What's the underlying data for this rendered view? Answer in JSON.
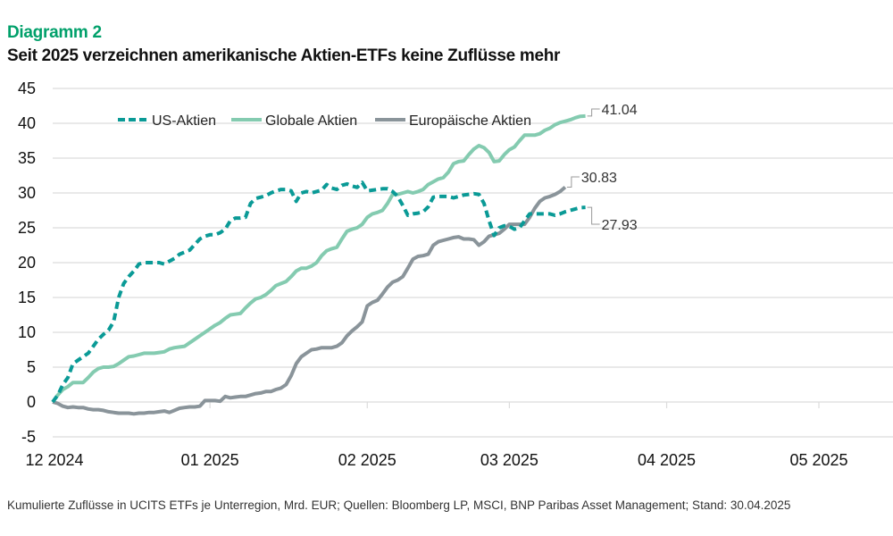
{
  "header": {
    "kicker": "Diagramm 2",
    "title": "Seit 2025 verzeichnen amerikanische Aktien-ETFs keine Zuflüsse mehr"
  },
  "footnote": "Kumulierte Zuflüsse in UCITS ETFs je Unterregion, Mrd. EUR; Quellen: Bloomberg LP, MSCI, BNP Paribas Asset Management; Stand: 30.04.2025",
  "chart_data": {
    "type": "line",
    "title": "Seit 2025 verzeichnen amerikanische Aktien-ETFs keine Zuflüsse mehr",
    "xlabel": "",
    "ylabel": "Mrd. EUR",
    "ylim": [
      -5,
      45
    ],
    "yticks": [
      45,
      40,
      35,
      30,
      25,
      20,
      15,
      10,
      5,
      0,
      -5
    ],
    "xlim_days": [
      0,
      151
    ],
    "xticks": [
      {
        "label": "12 2024",
        "day": 0
      },
      {
        "label": "01 2025",
        "day": 31
      },
      {
        "label": "02 2025",
        "day": 62
      },
      {
        "label": "03 2025",
        "day": 90
      },
      {
        "label": "04 2025",
        "day": 121
      },
      {
        "label": "05 2025",
        "day": 151
      }
    ],
    "grid": true,
    "legend_position": "top-left",
    "x_unit": "days since 2024-12-01",
    "series": [
      {
        "name": "US-Aktien",
        "color": "#0a9a96",
        "style": "dashed",
        "end_label": "27.93",
        "points": [
          [
            0,
            0
          ],
          [
            1,
            1
          ],
          [
            2,
            2.5
          ],
          [
            3,
            3.5
          ],
          [
            4,
            5.5
          ],
          [
            5,
            6
          ],
          [
            6,
            6.5
          ],
          [
            7,
            7
          ],
          [
            8,
            8
          ],
          [
            9,
            9
          ],
          [
            10,
            9.7
          ],
          [
            11,
            10.3
          ],
          [
            12,
            11.5
          ],
          [
            13,
            15
          ],
          [
            14,
            17
          ],
          [
            15,
            18
          ],
          [
            16,
            18.8
          ],
          [
            17,
            19.8
          ],
          [
            18,
            20
          ],
          [
            19,
            20
          ],
          [
            20,
            20
          ],
          [
            21,
            20
          ],
          [
            22,
            19.8
          ],
          [
            23,
            20.2
          ],
          [
            24,
            20.6
          ],
          [
            25,
            21.2
          ],
          [
            26,
            21.5
          ],
          [
            27,
            21.8
          ],
          [
            28,
            22.6
          ],
          [
            29,
            23.4
          ],
          [
            30,
            23.8
          ],
          [
            31,
            24
          ],
          [
            32,
            24
          ],
          [
            33,
            24.3
          ],
          [
            34,
            24.8
          ],
          [
            35,
            26
          ],
          [
            36,
            26.4
          ],
          [
            37,
            26.4
          ],
          [
            38,
            26.5
          ],
          [
            39,
            28.5
          ],
          [
            40,
            29.2
          ],
          [
            41,
            29.4
          ],
          [
            42,
            29.6
          ],
          [
            43,
            30
          ],
          [
            44,
            30.3
          ],
          [
            45,
            30.5
          ],
          [
            46,
            30.5
          ],
          [
            47,
            30.3
          ],
          [
            48,
            28.8
          ],
          [
            49,
            30
          ],
          [
            50,
            30.2
          ],
          [
            51,
            30
          ],
          [
            52,
            30.2
          ],
          [
            53,
            30.4
          ],
          [
            54,
            31.2
          ],
          [
            55,
            30.7
          ],
          [
            56,
            30.5
          ],
          [
            57,
            31.1
          ],
          [
            58,
            31.3
          ],
          [
            59,
            31
          ],
          [
            60,
            30.8
          ],
          [
            61,
            31.5
          ],
          [
            62,
            30.3
          ],
          [
            63,
            30.4
          ],
          [
            64,
            30.5
          ],
          [
            65,
            30.6
          ],
          [
            66,
            30.6
          ],
          [
            67,
            30.2
          ],
          [
            68,
            29.5
          ],
          [
            69,
            28.2
          ],
          [
            70,
            26.8
          ],
          [
            71,
            27
          ],
          [
            72,
            27.1
          ],
          [
            73,
            27.3
          ],
          [
            74,
            28
          ],
          [
            75,
            29.4
          ],
          [
            76,
            29.5
          ],
          [
            77,
            29.5
          ],
          [
            78,
            29.5
          ],
          [
            79,
            29.3
          ],
          [
            80,
            29.5
          ],
          [
            81,
            29.7
          ],
          [
            82,
            29.8
          ],
          [
            83,
            29.9
          ],
          [
            84,
            29.8
          ],
          [
            85,
            28.5
          ],
          [
            86,
            26
          ],
          [
            87,
            23.9
          ],
          [
            88,
            25
          ],
          [
            89,
            25.3
          ],
          [
            90,
            25.2
          ],
          [
            91,
            24.8
          ],
          [
            92,
            25
          ],
          [
            93,
            26
          ],
          [
            94,
            27
          ],
          [
            95,
            27
          ],
          [
            96,
            27
          ],
          [
            97,
            27
          ],
          [
            98,
            27
          ],
          [
            99,
            26.8
          ],
          [
            100,
            27
          ],
          [
            101,
            27.3
          ],
          [
            102,
            27.5
          ],
          [
            103,
            27.7
          ],
          [
            104,
            27.9
          ],
          [
            105,
            27.93
          ]
        ]
      },
      {
        "name": "Globale Aktien",
        "color": "#84cbb0",
        "style": "solid",
        "end_label": "41.04",
        "points": [
          [
            0,
            0
          ],
          [
            1,
            1
          ],
          [
            2,
            1.8
          ],
          [
            3,
            2.2
          ],
          [
            4,
            2.8
          ],
          [
            5,
            2.8
          ],
          [
            6,
            2.8
          ],
          [
            7,
            3.5
          ],
          [
            8,
            4.3
          ],
          [
            9,
            4.8
          ],
          [
            10,
            5
          ],
          [
            11,
            5
          ],
          [
            12,
            5.1
          ],
          [
            13,
            5.5
          ],
          [
            14,
            6
          ],
          [
            15,
            6.5
          ],
          [
            16,
            6.6
          ],
          [
            17,
            6.8
          ],
          [
            18,
            7
          ],
          [
            19,
            7
          ],
          [
            20,
            7
          ],
          [
            21,
            7.1
          ],
          [
            22,
            7.2
          ],
          [
            23,
            7.6
          ],
          [
            24,
            7.8
          ],
          [
            25,
            7.9
          ],
          [
            26,
            8
          ],
          [
            27,
            8.5
          ],
          [
            28,
            9
          ],
          [
            29,
            9.5
          ],
          [
            30,
            10
          ],
          [
            31,
            10.5
          ],
          [
            32,
            11
          ],
          [
            33,
            11.4
          ],
          [
            34,
            12
          ],
          [
            35,
            12.5
          ],
          [
            36,
            12.6
          ],
          [
            37,
            12.7
          ],
          [
            38,
            13.5
          ],
          [
            39,
            14.2
          ],
          [
            40,
            14.8
          ],
          [
            41,
            15
          ],
          [
            42,
            15.4
          ],
          [
            43,
            16
          ],
          [
            44,
            16.7
          ],
          [
            45,
            17
          ],
          [
            46,
            17.3
          ],
          [
            47,
            18
          ],
          [
            48,
            18.8
          ],
          [
            49,
            19.2
          ],
          [
            50,
            19.2
          ],
          [
            51,
            19.5
          ],
          [
            52,
            20
          ],
          [
            53,
            21
          ],
          [
            54,
            21.7
          ],
          [
            55,
            22
          ],
          [
            56,
            22.2
          ],
          [
            57,
            23.4
          ],
          [
            58,
            24.5
          ],
          [
            59,
            24.8
          ],
          [
            60,
            25
          ],
          [
            61,
            25.5
          ],
          [
            62,
            26.5
          ],
          [
            63,
            27
          ],
          [
            64,
            27.2
          ],
          [
            65,
            27.5
          ],
          [
            66,
            28.5
          ],
          [
            67,
            29.8
          ],
          [
            68,
            29.8
          ],
          [
            69,
            30
          ],
          [
            70,
            30.2
          ],
          [
            71,
            30
          ],
          [
            72,
            30.2
          ],
          [
            73,
            30.5
          ],
          [
            74,
            31.2
          ],
          [
            75,
            31.6
          ],
          [
            76,
            32
          ],
          [
            77,
            32.2
          ],
          [
            78,
            33
          ],
          [
            79,
            34.2
          ],
          [
            80,
            34.5
          ],
          [
            81,
            34.6
          ],
          [
            82,
            35.5
          ],
          [
            83,
            36.3
          ],
          [
            84,
            36.8
          ],
          [
            85,
            36.5
          ],
          [
            86,
            35.8
          ],
          [
            87,
            34.5
          ],
          [
            88,
            34.6
          ],
          [
            89,
            35.5
          ],
          [
            90,
            36.2
          ],
          [
            91,
            36.6
          ],
          [
            92,
            37.5
          ],
          [
            93,
            38.3
          ],
          [
            94,
            38.3
          ],
          [
            95,
            38.3
          ],
          [
            96,
            38.5
          ],
          [
            97,
            39
          ],
          [
            98,
            39.3
          ],
          [
            99,
            39.8
          ],
          [
            100,
            40.1
          ],
          [
            101,
            40.3
          ],
          [
            102,
            40.5
          ],
          [
            103,
            40.8
          ],
          [
            104,
            41
          ],
          [
            105,
            41.04
          ]
        ]
      },
      {
        "name": "Europäische Aktien",
        "color": "#8a949a",
        "style": "solid",
        "end_label": "30.83",
        "points": [
          [
            0,
            0
          ],
          [
            1,
            -0.2
          ],
          [
            2,
            -0.6
          ],
          [
            3,
            -0.8
          ],
          [
            4,
            -0.7
          ],
          [
            5,
            -0.8
          ],
          [
            6,
            -0.8
          ],
          [
            7,
            -1
          ],
          [
            8,
            -1.1
          ],
          [
            9,
            -1.1
          ],
          [
            10,
            -1.2
          ],
          [
            11,
            -1.4
          ],
          [
            12,
            -1.5
          ],
          [
            13,
            -1.6
          ],
          [
            14,
            -1.6
          ],
          [
            15,
            -1.6
          ],
          [
            16,
            -1.7
          ],
          [
            17,
            -1.6
          ],
          [
            18,
            -1.6
          ],
          [
            19,
            -1.5
          ],
          [
            20,
            -1.5
          ],
          [
            21,
            -1.4
          ],
          [
            22,
            -1.3
          ],
          [
            23,
            -1.5
          ],
          [
            24,
            -1.2
          ],
          [
            25,
            -0.9
          ],
          [
            26,
            -0.8
          ],
          [
            27,
            -0.7
          ],
          [
            28,
            -0.7
          ],
          [
            29,
            -0.6
          ],
          [
            30,
            0.2
          ],
          [
            31,
            0.2
          ],
          [
            32,
            0.2
          ],
          [
            33,
            0.1
          ],
          [
            34,
            0.8
          ],
          [
            35,
            0.6
          ],
          [
            36,
            0.7
          ],
          [
            37,
            0.8
          ],
          [
            38,
            0.8
          ],
          [
            39,
            1
          ],
          [
            40,
            1.2
          ],
          [
            41,
            1.3
          ],
          [
            42,
            1.5
          ],
          [
            43,
            1.5
          ],
          [
            44,
            1.8
          ],
          [
            45,
            2
          ],
          [
            46,
            2.5
          ],
          [
            47,
            3.8
          ],
          [
            48,
            5.5
          ],
          [
            49,
            6.5
          ],
          [
            50,
            7
          ],
          [
            51,
            7.5
          ],
          [
            52,
            7.6
          ],
          [
            53,
            7.8
          ],
          [
            54,
            7.8
          ],
          [
            55,
            7.8
          ],
          [
            56,
            8
          ],
          [
            57,
            8.5
          ],
          [
            58,
            9.5
          ],
          [
            59,
            10.2
          ],
          [
            60,
            10.8
          ],
          [
            61,
            11.5
          ],
          [
            62,
            13.8
          ],
          [
            63,
            14.3
          ],
          [
            64,
            14.6
          ],
          [
            65,
            15.5
          ],
          [
            66,
            16.5
          ],
          [
            67,
            17.2
          ],
          [
            68,
            17.5
          ],
          [
            69,
            18
          ],
          [
            70,
            19.2
          ],
          [
            71,
            20.5
          ],
          [
            72,
            20.9
          ],
          [
            73,
            21
          ],
          [
            74,
            21.2
          ],
          [
            75,
            22.5
          ],
          [
            76,
            23
          ],
          [
            77,
            23.2
          ],
          [
            78,
            23.4
          ],
          [
            79,
            23.6
          ],
          [
            80,
            23.7
          ],
          [
            81,
            23.4
          ],
          [
            82,
            23.4
          ],
          [
            83,
            23.3
          ],
          [
            84,
            22.5
          ],
          [
            85,
            23
          ],
          [
            86,
            23.8
          ],
          [
            87,
            24
          ],
          [
            88,
            24.2
          ],
          [
            89,
            24.8
          ],
          [
            90,
            25.5
          ],
          [
            91,
            25.5
          ],
          [
            92,
            25.5
          ],
          [
            93,
            25.5
          ],
          [
            94,
            26.5
          ],
          [
            95,
            27.8
          ],
          [
            96,
            28.8
          ],
          [
            97,
            29.3
          ],
          [
            98,
            29.5
          ],
          [
            99,
            29.8
          ],
          [
            100,
            30.2
          ],
          [
            101,
            30.83
          ]
        ]
      }
    ]
  }
}
